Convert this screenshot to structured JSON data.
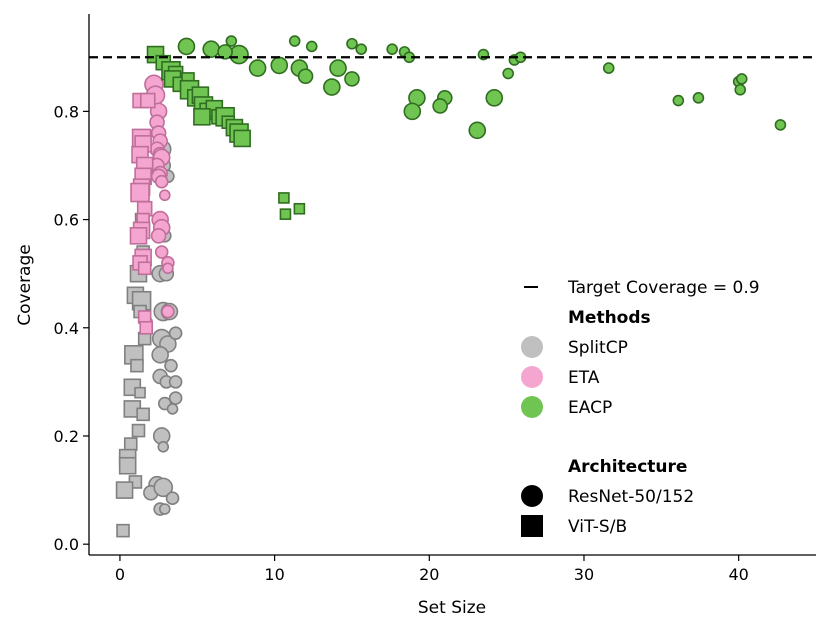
{
  "chart_data": {
    "type": "scatter",
    "xlabel": "Set Size",
    "ylabel": "Coverage",
    "xlim": [
      -2,
      45
    ],
    "ylim": [
      -0.02,
      0.98
    ],
    "xticks": [
      0,
      10,
      20,
      30,
      40
    ],
    "yticks": [
      0.0,
      0.2,
      0.4,
      0.6,
      0.8
    ],
    "ytick_labels": [
      "0.0",
      "0.2",
      "0.4",
      "0.6",
      "0.8"
    ],
    "target_coverage": 0.9,
    "legend": {
      "target_label": "Target Coverage = 0.9",
      "methods_title": "Methods",
      "methods": [
        {
          "name": "SplitCP",
          "fill": "#c0c0c0",
          "edge": "#808080"
        },
        {
          "name": "ETA",
          "fill": "#f4a6d0",
          "edge": "#c06e9a"
        },
        {
          "name": "EACP",
          "fill": "#70c452",
          "edge": "#2f6e20"
        }
      ],
      "arch_title": "Architecture",
      "architectures": [
        {
          "name": "ResNet-50/152",
          "marker": "circle"
        },
        {
          "name": "ViT-S/B",
          "marker": "square"
        }
      ]
    },
    "series": [
      {
        "name": "SplitCP",
        "architecture": "ResNet-50/152",
        "marker": "circle",
        "points": [
          [
            2.7,
            0.73,
            9
          ],
          [
            2.8,
            0.7,
            7
          ],
          [
            3.1,
            0.68,
            6
          ],
          [
            2.6,
            0.6,
            7
          ],
          [
            2.9,
            0.57,
            6
          ],
          [
            2.6,
            0.5,
            8
          ],
          [
            3.0,
            0.5,
            7
          ],
          [
            2.8,
            0.43,
            9
          ],
          [
            3.2,
            0.43,
            8
          ],
          [
            2.7,
            0.38,
            9
          ],
          [
            3.1,
            0.37,
            8
          ],
          [
            3.6,
            0.39,
            6
          ],
          [
            2.6,
            0.35,
            8
          ],
          [
            3.3,
            0.33,
            6
          ],
          [
            2.6,
            0.31,
            7
          ],
          [
            3.0,
            0.3,
            6
          ],
          [
            3.6,
            0.3,
            6
          ],
          [
            2.9,
            0.26,
            6
          ],
          [
            3.6,
            0.27,
            6
          ],
          [
            3.4,
            0.25,
            5
          ],
          [
            2.7,
            0.2,
            8
          ],
          [
            2.8,
            0.18,
            5
          ],
          [
            2.4,
            0.11,
            8
          ],
          [
            2.0,
            0.095,
            7
          ],
          [
            2.8,
            0.105,
            9
          ],
          [
            3.4,
            0.085,
            6
          ],
          [
            2.6,
            0.065,
            6
          ],
          [
            2.9,
            0.065,
            5
          ]
        ]
      },
      {
        "name": "SplitCP",
        "architecture": "ViT-S/B",
        "marker": "square",
        "points": [
          [
            1.4,
            0.6,
            6
          ],
          [
            1.5,
            0.54,
            6
          ],
          [
            1.2,
            0.5,
            8
          ],
          [
            1.0,
            0.46,
            8
          ],
          [
            1.4,
            0.45,
            9
          ],
          [
            1.3,
            0.43,
            6
          ],
          [
            1.6,
            0.38,
            6
          ],
          [
            0.9,
            0.35,
            9
          ],
          [
            1.1,
            0.33,
            6
          ],
          [
            0.8,
            0.29,
            8
          ],
          [
            1.3,
            0.28,
            5
          ],
          [
            0.8,
            0.25,
            8
          ],
          [
            1.5,
            0.24,
            6
          ],
          [
            1.2,
            0.21,
            6
          ],
          [
            0.7,
            0.185,
            6
          ],
          [
            0.5,
            0.16,
            8
          ],
          [
            0.5,
            0.145,
            8
          ],
          [
            1.0,
            0.115,
            6
          ],
          [
            0.3,
            0.1,
            8
          ],
          [
            0.2,
            0.025,
            6
          ]
        ]
      },
      {
        "name": "ETA",
        "architecture": "ResNet-50/152",
        "marker": "circle",
        "points": [
          [
            2.2,
            0.85,
            9
          ],
          [
            2.3,
            0.83,
            9
          ],
          [
            2.5,
            0.8,
            8
          ],
          [
            2.4,
            0.78,
            7
          ],
          [
            2.5,
            0.76,
            7
          ],
          [
            2.6,
            0.745,
            7
          ],
          [
            2.4,
            0.73,
            7
          ],
          [
            2.6,
            0.72,
            7
          ],
          [
            2.7,
            0.715,
            8
          ],
          [
            2.4,
            0.7,
            7
          ],
          [
            2.6,
            0.685,
            7
          ],
          [
            2.5,
            0.68,
            7
          ],
          [
            2.7,
            0.67,
            6
          ],
          [
            2.9,
            0.645,
            5
          ],
          [
            2.6,
            0.6,
            8
          ],
          [
            2.7,
            0.585,
            8
          ],
          [
            2.5,
            0.57,
            7
          ],
          [
            2.7,
            0.54,
            6
          ],
          [
            3.1,
            0.52,
            6
          ],
          [
            3.1,
            0.51,
            5
          ],
          [
            3.1,
            0.43,
            6
          ],
          [
            1.7,
            0.41,
            6
          ]
        ]
      },
      {
        "name": "ETA",
        "architecture": "ViT-S/B",
        "marker": "square",
        "points": [
          [
            1.3,
            0.82,
            7
          ],
          [
            1.8,
            0.82,
            7
          ],
          [
            1.4,
            0.75,
            9
          ],
          [
            1.5,
            0.74,
            8
          ],
          [
            1.3,
            0.72,
            8
          ],
          [
            1.6,
            0.7,
            8
          ],
          [
            1.5,
            0.68,
            8
          ],
          [
            1.4,
            0.66,
            8
          ],
          [
            1.3,
            0.65,
            9
          ],
          [
            1.6,
            0.62,
            7
          ],
          [
            1.5,
            0.6,
            6
          ],
          [
            1.4,
            0.58,
            8
          ],
          [
            1.2,
            0.57,
            8
          ],
          [
            1.5,
            0.53,
            8
          ],
          [
            1.3,
            0.52,
            7
          ],
          [
            1.6,
            0.51,
            6
          ],
          [
            1.6,
            0.42,
            6
          ],
          [
            1.7,
            0.4,
            6
          ]
        ]
      },
      {
        "name": "EACP",
        "architecture": "ResNet-50/152",
        "marker": "circle",
        "points": [
          [
            4.3,
            0.92,
            8
          ],
          [
            5.9,
            0.915,
            8
          ],
          [
            7.2,
            0.93,
            5
          ],
          [
            7.7,
            0.905,
            9
          ],
          [
            6.8,
            0.91,
            7
          ],
          [
            8.9,
            0.88,
            8
          ],
          [
            10.3,
            0.885,
            8
          ],
          [
            11.3,
            0.93,
            5
          ],
          [
            11.6,
            0.88,
            8
          ],
          [
            12.4,
            0.92,
            5
          ],
          [
            12.0,
            0.865,
            7
          ],
          [
            14.1,
            0.88,
            8
          ],
          [
            15.0,
            0.925,
            5
          ],
          [
            15.6,
            0.915,
            5
          ],
          [
            13.7,
            0.845,
            8
          ],
          [
            15.0,
            0.86,
            7
          ],
          [
            17.6,
            0.915,
            5
          ],
          [
            18.4,
            0.91,
            5
          ],
          [
            18.7,
            0.9,
            5
          ],
          [
            19.2,
            0.825,
            8
          ],
          [
            18.9,
            0.8,
            8
          ],
          [
            21.0,
            0.825,
            7
          ],
          [
            20.7,
            0.81,
            7
          ],
          [
            23.5,
            0.905,
            5
          ],
          [
            23.1,
            0.765,
            8
          ],
          [
            24.2,
            0.825,
            8
          ],
          [
            25.1,
            0.87,
            5
          ],
          [
            25.5,
            0.895,
            5
          ],
          [
            25.9,
            0.9,
            5
          ],
          [
            31.6,
            0.88,
            5
          ],
          [
            36.1,
            0.82,
            5
          ],
          [
            37.4,
            0.825,
            5
          ],
          [
            40.0,
            0.855,
            5
          ],
          [
            40.2,
            0.86,
            5
          ],
          [
            40.1,
            0.84,
            5
          ],
          [
            42.7,
            0.775,
            5
          ]
        ]
      },
      {
        "name": "EACP",
        "architecture": "ViT-S/B",
        "marker": "square",
        "points": [
          [
            2.3,
            0.905,
            8
          ],
          [
            2.8,
            0.89,
            7
          ],
          [
            3.3,
            0.875,
            9
          ],
          [
            3.6,
            0.87,
            7
          ],
          [
            3.4,
            0.86,
            8
          ],
          [
            3.9,
            0.85,
            7
          ],
          [
            4.4,
            0.86,
            6
          ],
          [
            4.5,
            0.84,
            9
          ],
          [
            4.9,
            0.825,
            8
          ],
          [
            5.2,
            0.83,
            8
          ],
          [
            5.4,
            0.81,
            9
          ],
          [
            5.7,
            0.8,
            8
          ],
          [
            6.1,
            0.805,
            8
          ],
          [
            6.4,
            0.79,
            7
          ],
          [
            6.8,
            0.79,
            9
          ],
          [
            7.0,
            0.78,
            6
          ],
          [
            7.4,
            0.77,
            8
          ],
          [
            7.7,
            0.76,
            9
          ],
          [
            7.9,
            0.75,
            8
          ],
          [
            5.3,
            0.79,
            8
          ],
          [
            10.6,
            0.64,
            5
          ],
          [
            10.7,
            0.61,
            5
          ],
          [
            11.6,
            0.62,
            5
          ]
        ]
      }
    ]
  }
}
